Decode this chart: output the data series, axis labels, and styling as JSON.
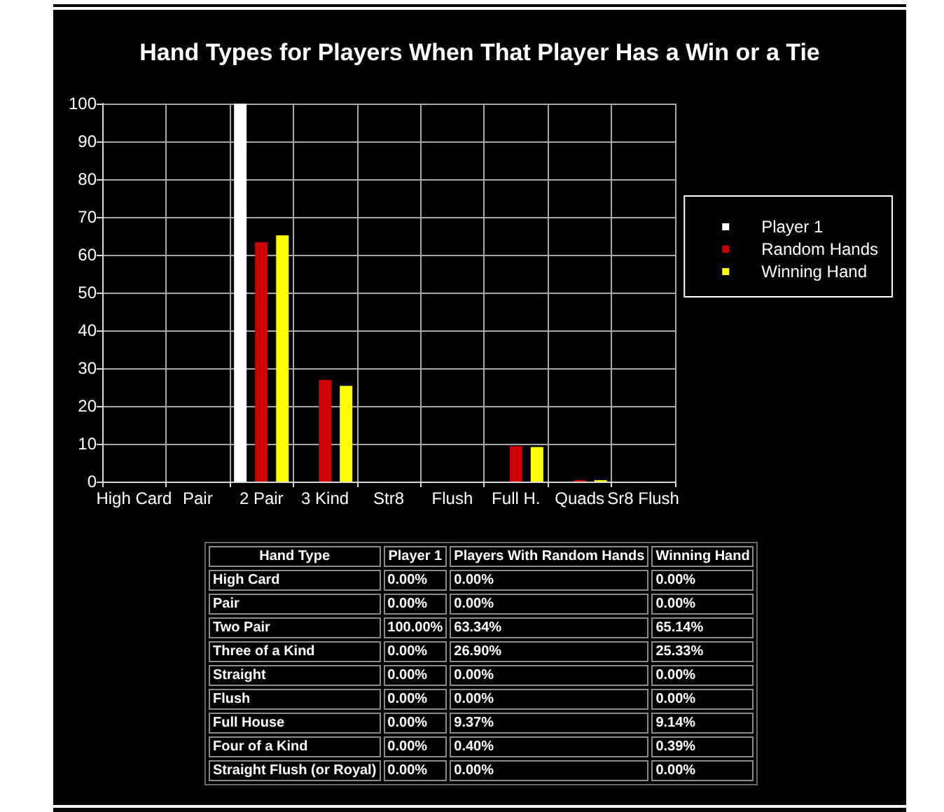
{
  "chart_data": {
    "type": "bar",
    "title": "Hand Types for Players When That Player Has a Win or a Tie",
    "categories": [
      "High Card",
      "Pair",
      "2 Pair",
      "3 Kind",
      "Str8",
      "Flush",
      "Full H.",
      "Quads",
      "Sr8 Flush"
    ],
    "series": [
      {
        "name": "Player 1",
        "color": "#ffffff",
        "values": [
          0,
          0,
          100,
          0,
          0,
          0,
          0,
          0,
          0
        ]
      },
      {
        "name": "Random Hands",
        "color": "#cc0000",
        "values": [
          0,
          0,
          63.34,
          26.9,
          0,
          0,
          9.37,
          0.4,
          0
        ]
      },
      {
        "name": "Winning Hand",
        "color": "#ffff00",
        "values": [
          0,
          0,
          65.14,
          25.33,
          0,
          0,
          9.14,
          0.39,
          0
        ]
      }
    ],
    "ylim": [
      0,
      100
    ],
    "yticks": [
      0,
      10,
      20,
      30,
      40,
      50,
      60,
      70,
      80,
      90,
      100
    ],
    "grid": true,
    "legend": "right",
    "annotations": [
      "Hand Type",
      "Player 1",
      "Players With Random Hands",
      "Winning Hand",
      "High Card",
      "0.00%",
      "0.00%",
      "0.00%",
      "Pair",
      "0.00%",
      "0.00%",
      "0.00%",
      "Two Pair",
      "100.00%",
      "63.34%",
      "65.14%",
      "Three of a Kind",
      "0.00%",
      "26.90%",
      "25.33%",
      "Straight",
      "0.00%",
      "0.00%",
      "0.00%",
      "Flush",
      "0.00%",
      "0.00%",
      "0.00%",
      "Full House",
      "0.00%",
      "9.37%",
      "9.14%",
      "Four of a Kind",
      "0.00%",
      "0.40%",
      "0.39%",
      "Straight Flush (or Royal)",
      "0.00%",
      "0.00%",
      "0.00%"
    ]
  }
}
